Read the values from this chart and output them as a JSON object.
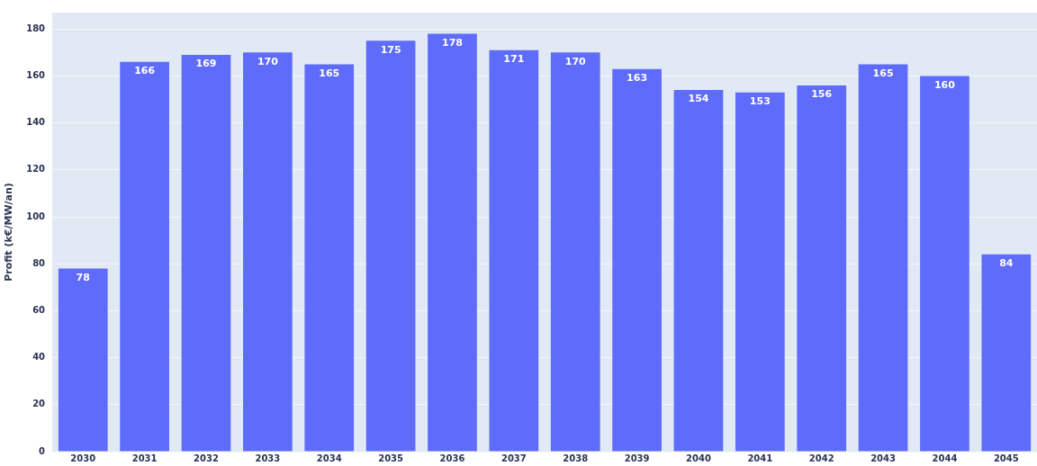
{
  "chart_data": {
    "type": "bar",
    "ylabel": "Profit (k€/MW/an)",
    "categories": [
      "2030",
      "2031",
      "2032",
      "2033",
      "2034",
      "2035",
      "2036",
      "2037",
      "2038",
      "2039",
      "2040",
      "2041",
      "2042",
      "2043",
      "2044",
      "2045"
    ],
    "values": [
      78,
      166,
      169,
      170,
      165,
      175,
      178,
      171,
      170,
      163,
      154,
      153,
      156,
      165,
      160,
      84
    ],
    "color": "#5f6cfb",
    "ylim": [
      0,
      187
    ],
    "yticks": [
      0,
      20,
      40,
      60,
      80,
      100,
      120,
      140,
      160,
      180
    ],
    "grid": "y",
    "data_labels": true
  }
}
